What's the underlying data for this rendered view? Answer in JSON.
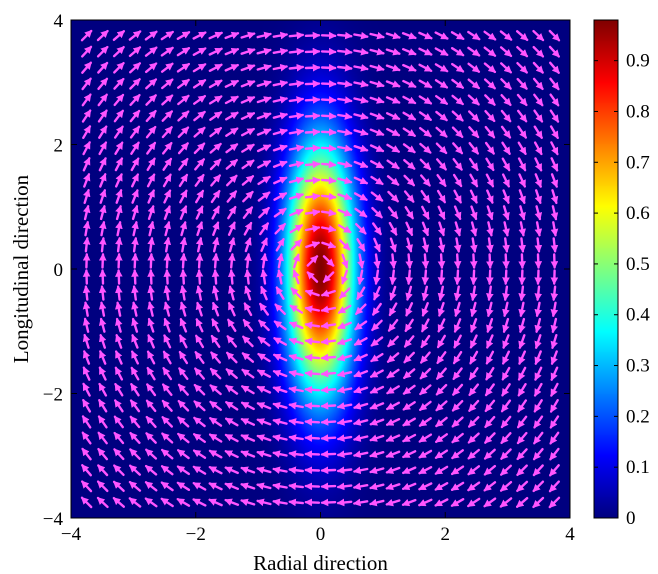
{
  "chart_data": {
    "type": "heatmap",
    "title": "",
    "xlabel": "Radial direction",
    "ylabel": "Longitudinal direction",
    "xlim": [
      -4,
      4
    ],
    "ylim": [
      -4,
      4
    ],
    "x_ticks": [
      "−4",
      "−2",
      "0",
      "2",
      "4"
    ],
    "y_ticks": [
      "−4",
      "−2",
      "0",
      "2",
      "4"
    ],
    "x_tick_values": [
      -4,
      -2,
      0,
      2,
      4
    ],
    "y_tick_values": [
      -4,
      -2,
      0,
      2,
      4
    ],
    "colorbar": {
      "colormap": "jet",
      "range": [
        0,
        0.98
      ],
      "ticks": [
        "0",
        "0.1",
        "0.2",
        "0.3",
        "0.4",
        "0.5",
        "0.6",
        "0.7",
        "0.8",
        "0.9"
      ],
      "tick_values": [
        0,
        0.1,
        0.2,
        0.3,
        0.4,
        0.5,
        0.6,
        0.7,
        0.8,
        0.9
      ]
    },
    "field": {
      "function": "gaussian",
      "peak": 0.98,
      "center": [
        0,
        0
      ],
      "sigma_x": 0.38,
      "sigma_y": 1.4,
      "description": "Elongated Gaussian intensity along the longitudinal axis"
    },
    "vector_field": {
      "type": "quiver",
      "pattern": "clockwise circulation about the origin",
      "color": "#ff55ff",
      "x_grid": [
        -3.75,
        3.75,
        30
      ],
      "y_grid": [
        -3.75,
        3.75,
        30
      ]
    },
    "grid": false,
    "legend": "none"
  }
}
